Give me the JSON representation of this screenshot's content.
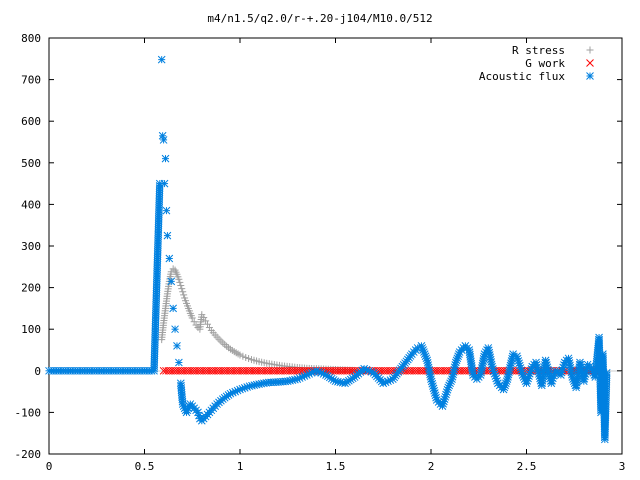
{
  "chart_data": {
    "type": "scatter",
    "title": "m4/n1.5/q2.0/r-+.20-j104/M10.0/512",
    "xlabel": "",
    "ylabel": "",
    "xlim": [
      0,
      3
    ],
    "ylim": [
      -200,
      800
    ],
    "x_ticks": [
      0,
      0.5,
      1,
      1.5,
      2,
      2.5,
      3
    ],
    "x_tick_labels": [
      "0",
      "0.5",
      "1",
      "1.5",
      "2",
      "2.5",
      "3"
    ],
    "y_ticks": [
      -200,
      -100,
      0,
      100,
      200,
      300,
      400,
      500,
      600,
      700,
      800
    ],
    "y_tick_labels": [
      "-200",
      "-100",
      "0",
      "100",
      "200",
      "300",
      "400",
      "500",
      "600",
      "700",
      "800"
    ],
    "grid": false,
    "legend_position": "top-right",
    "series": [
      {
        "name": "R stress",
        "marker": "plus",
        "color": "#a0a0a0",
        "x": [
          0.59,
          0.6,
          0.61,
          0.62,
          0.63,
          0.64,
          0.65,
          0.66,
          0.67,
          0.68,
          0.69,
          0.7,
          0.71,
          0.72,
          0.73,
          0.74,
          0.75,
          0.76,
          0.77,
          0.78,
          0.79,
          0.8,
          0.81,
          0.82,
          0.83,
          0.84,
          0.85,
          0.87,
          0.89,
          0.91,
          0.93,
          0.95,
          0.97,
          1.0,
          1.03,
          1.06,
          1.1,
          1.14,
          1.18,
          1.22,
          1.26,
          1.3,
          1.35,
          1.4,
          1.45,
          1.5,
          1.55,
          1.6
        ],
        "y": [
          75,
          115,
          150,
          185,
          215,
          238,
          245,
          242,
          232,
          220,
          205,
          190,
          175,
          162,
          150,
          138,
          127,
          118,
          110,
          104,
          100,
          135,
          128,
          120,
          112,
          104,
          97,
          86,
          76,
          67,
          59,
          52,
          46,
          38,
          32,
          27,
          22,
          18,
          15,
          12,
          10,
          8,
          6,
          5,
          4,
          3,
          2,
          1
        ]
      },
      {
        "name": "G work",
        "marker": "cross",
        "color": "#ff0000",
        "x": [
          0.6,
          0.65,
          0.7,
          0.75,
          0.8,
          0.85,
          0.9,
          0.95,
          1.0,
          1.05,
          1.1,
          1.15,
          1.2,
          1.25,
          1.3,
          1.35,
          1.4,
          1.45,
          1.5,
          1.55,
          1.6,
          1.65,
          1.7,
          1.75,
          1.8,
          1.85,
          1.9,
          1.95,
          2.0,
          2.05,
          2.1,
          2.15,
          2.2,
          2.25,
          2.3,
          2.35,
          2.4,
          2.45,
          2.5,
          2.55,
          2.6,
          2.65,
          2.7,
          2.75,
          2.8,
          2.85,
          2.9
        ],
        "y": [
          0,
          0,
          0,
          0,
          0,
          0,
          0,
          0,
          0,
          0,
          0,
          0,
          0,
          0,
          0,
          0,
          0,
          0,
          0,
          0,
          0,
          0,
          0,
          0,
          0,
          0,
          0,
          0,
          0,
          0,
          0,
          0,
          0,
          0,
          0,
          0,
          0,
          0,
          0,
          0,
          0,
          0,
          0,
          0,
          0,
          0,
          0
        ]
      },
      {
        "name": "Acoustic flux",
        "marker": "star",
        "color": "#0080e0",
        "x": [
          0,
          0.05,
          0.1,
          0.15,
          0.2,
          0.25,
          0.3,
          0.35,
          0.4,
          0.45,
          0.5,
          0.55,
          0.58,
          0.59,
          0.595,
          0.6,
          0.605,
          0.61,
          0.615,
          0.62,
          0.63,
          0.64,
          0.65,
          0.66,
          0.67,
          0.68,
          0.69,
          0.7,
          0.72,
          0.74,
          0.76,
          0.78,
          0.79,
          0.8,
          0.82,
          0.85,
          0.88,
          0.91,
          0.95,
          1.0,
          1.05,
          1.1,
          1.15,
          1.2,
          1.25,
          1.3,
          1.35,
          1.4,
          1.45,
          1.5,
          1.55,
          1.6,
          1.65,
          1.7,
          1.75,
          1.8,
          1.85,
          1.9,
          1.93,
          1.95,
          1.98,
          2.0,
          2.03,
          2.06,
          2.09,
          2.11,
          2.13,
          2.15,
          2.18,
          2.2,
          2.22,
          2.24,
          2.26,
          2.28,
          2.3,
          2.32,
          2.35,
          2.38,
          2.4,
          2.43,
          2.45,
          2.48,
          2.5,
          2.53,
          2.55,
          2.58,
          2.6,
          2.63,
          2.65,
          2.68,
          2.7,
          2.72,
          2.74,
          2.76,
          2.78,
          2.8,
          2.82,
          2.84,
          2.86,
          2.88,
          2.89,
          2.9,
          2.91,
          2.92
        ],
        "y": [
          0,
          0,
          0,
          0,
          0,
          0,
          0,
          0,
          0,
          0,
          0,
          0,
          450,
          748,
          565,
          555,
          450,
          510,
          385,
          325,
          270,
          215,
          150,
          100,
          60,
          20,
          -30,
          -80,
          -100,
          -80,
          -90,
          -100,
          -115,
          -120,
          -110,
          -95,
          -80,
          -68,
          -55,
          -45,
          -37,
          -32,
          -28,
          -27,
          -25,
          -20,
          -10,
          0,
          -10,
          -25,
          -30,
          -15,
          5,
          -5,
          -30,
          -20,
          10,
          40,
          55,
          60,
          25,
          -20,
          -70,
          -85,
          -40,
          -20,
          20,
          45,
          60,
          50,
          -10,
          -20,
          -10,
          40,
          55,
          10,
          -30,
          -45,
          -20,
          40,
          35,
          -10,
          -30,
          10,
          20,
          -35,
          25,
          -30,
          0,
          -10,
          20,
          30,
          -15,
          -40,
          20,
          -25,
          15,
          5,
          -15,
          80,
          -100,
          40,
          -165,
          -5
        ]
      }
    ]
  }
}
